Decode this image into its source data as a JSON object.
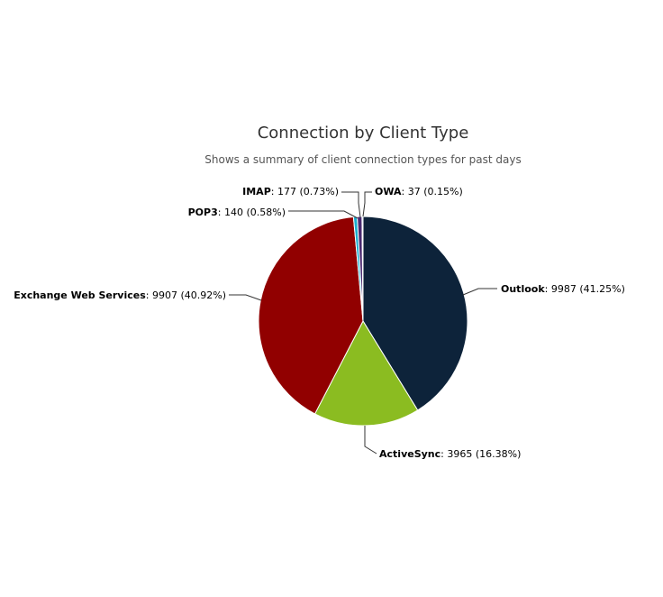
{
  "chart_data": {
    "type": "pie",
    "title": "Connection by Client Type",
    "subtitle": "Shows a summary of client connection types for past days",
    "slices": [
      {
        "name": "Outlook",
        "value": 9987,
        "percent": "41.25%",
        "color": "#0d233a"
      },
      {
        "name": "ActiveSync",
        "value": 3965,
        "percent": "16.38%",
        "color": "#8bbc21"
      },
      {
        "name": "Exchange Web Services",
        "value": 9907,
        "percent": "40.92%",
        "color": "#910000"
      },
      {
        "name": "POP3",
        "value": 140,
        "percent": "0.58%",
        "color": "#1aadce"
      },
      {
        "name": "IMAP",
        "value": 177,
        "percent": "0.73%",
        "color": "#492970"
      },
      {
        "name": "OWA",
        "value": 37,
        "percent": "0.15%",
        "color": "#2f7ed8"
      }
    ]
  }
}
